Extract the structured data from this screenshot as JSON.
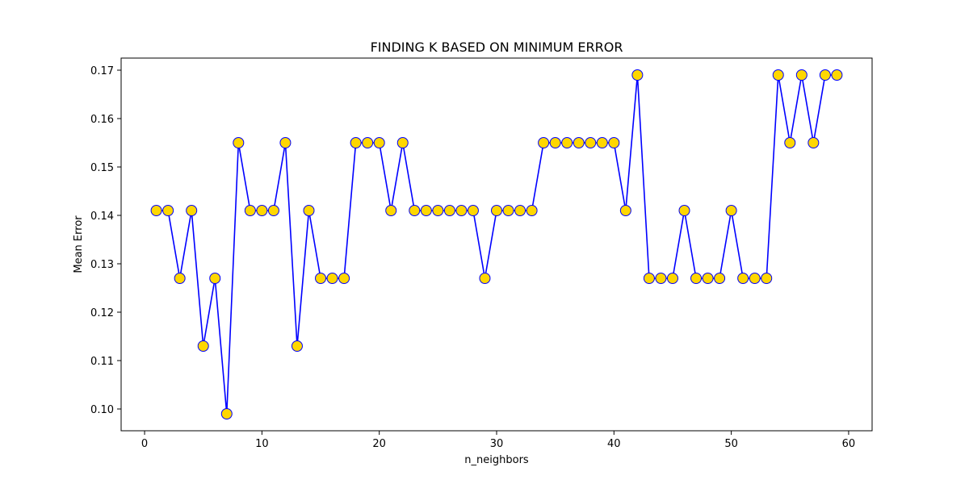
{
  "chart_data": {
    "type": "line",
    "title": "FINDING K BASED ON MINIMUM ERROR",
    "xlabel": "n_neighbors",
    "ylabel": "Mean Error",
    "xlim": [
      -2,
      62
    ],
    "ylim": [
      0.0955,
      0.1725
    ],
    "xticks": [
      0,
      10,
      20,
      30,
      40,
      50,
      60
    ],
    "yticks": [
      0.1,
      0.11,
      0.12,
      0.13,
      0.14,
      0.15,
      0.16,
      0.17
    ],
    "ytick_labels": [
      "0.10",
      "0.11",
      "0.12",
      "0.13",
      "0.14",
      "0.15",
      "0.16",
      "0.17"
    ],
    "grid": false,
    "line_color": "#0000ff",
    "marker_face_color": "#ffd700",
    "marker_edge_color": "#0000ff",
    "series": [
      {
        "x": [
          1,
          2,
          3,
          4,
          5,
          6,
          7,
          8,
          9,
          10,
          11,
          12,
          13,
          14,
          15,
          16,
          17,
          18,
          19,
          20,
          21,
          22,
          23,
          24,
          25,
          26,
          27,
          28,
          29,
          30,
          31,
          32,
          33,
          34,
          35,
          36,
          37,
          38,
          39,
          40,
          41,
          42,
          43,
          44,
          45,
          46,
          47,
          48,
          49,
          50,
          51,
          52,
          53,
          54,
          55,
          56,
          57,
          58,
          59
        ],
        "values": [
          0.141,
          0.141,
          0.127,
          0.141,
          0.113,
          0.127,
          0.099,
          0.155,
          0.141,
          0.141,
          0.141,
          0.155,
          0.113,
          0.141,
          0.127,
          0.127,
          0.127,
          0.155,
          0.155,
          0.155,
          0.141,
          0.155,
          0.141,
          0.141,
          0.141,
          0.141,
          0.141,
          0.141,
          0.127,
          0.141,
          0.141,
          0.141,
          0.141,
          0.155,
          0.155,
          0.155,
          0.155,
          0.155,
          0.155,
          0.155,
          0.141,
          0.169,
          0.127,
          0.127,
          0.127,
          0.141,
          0.127,
          0.127,
          0.127,
          0.141,
          0.127,
          0.127,
          0.127,
          0.169,
          0.155,
          0.169,
          0.155,
          0.169,
          0.169
        ]
      }
    ]
  }
}
